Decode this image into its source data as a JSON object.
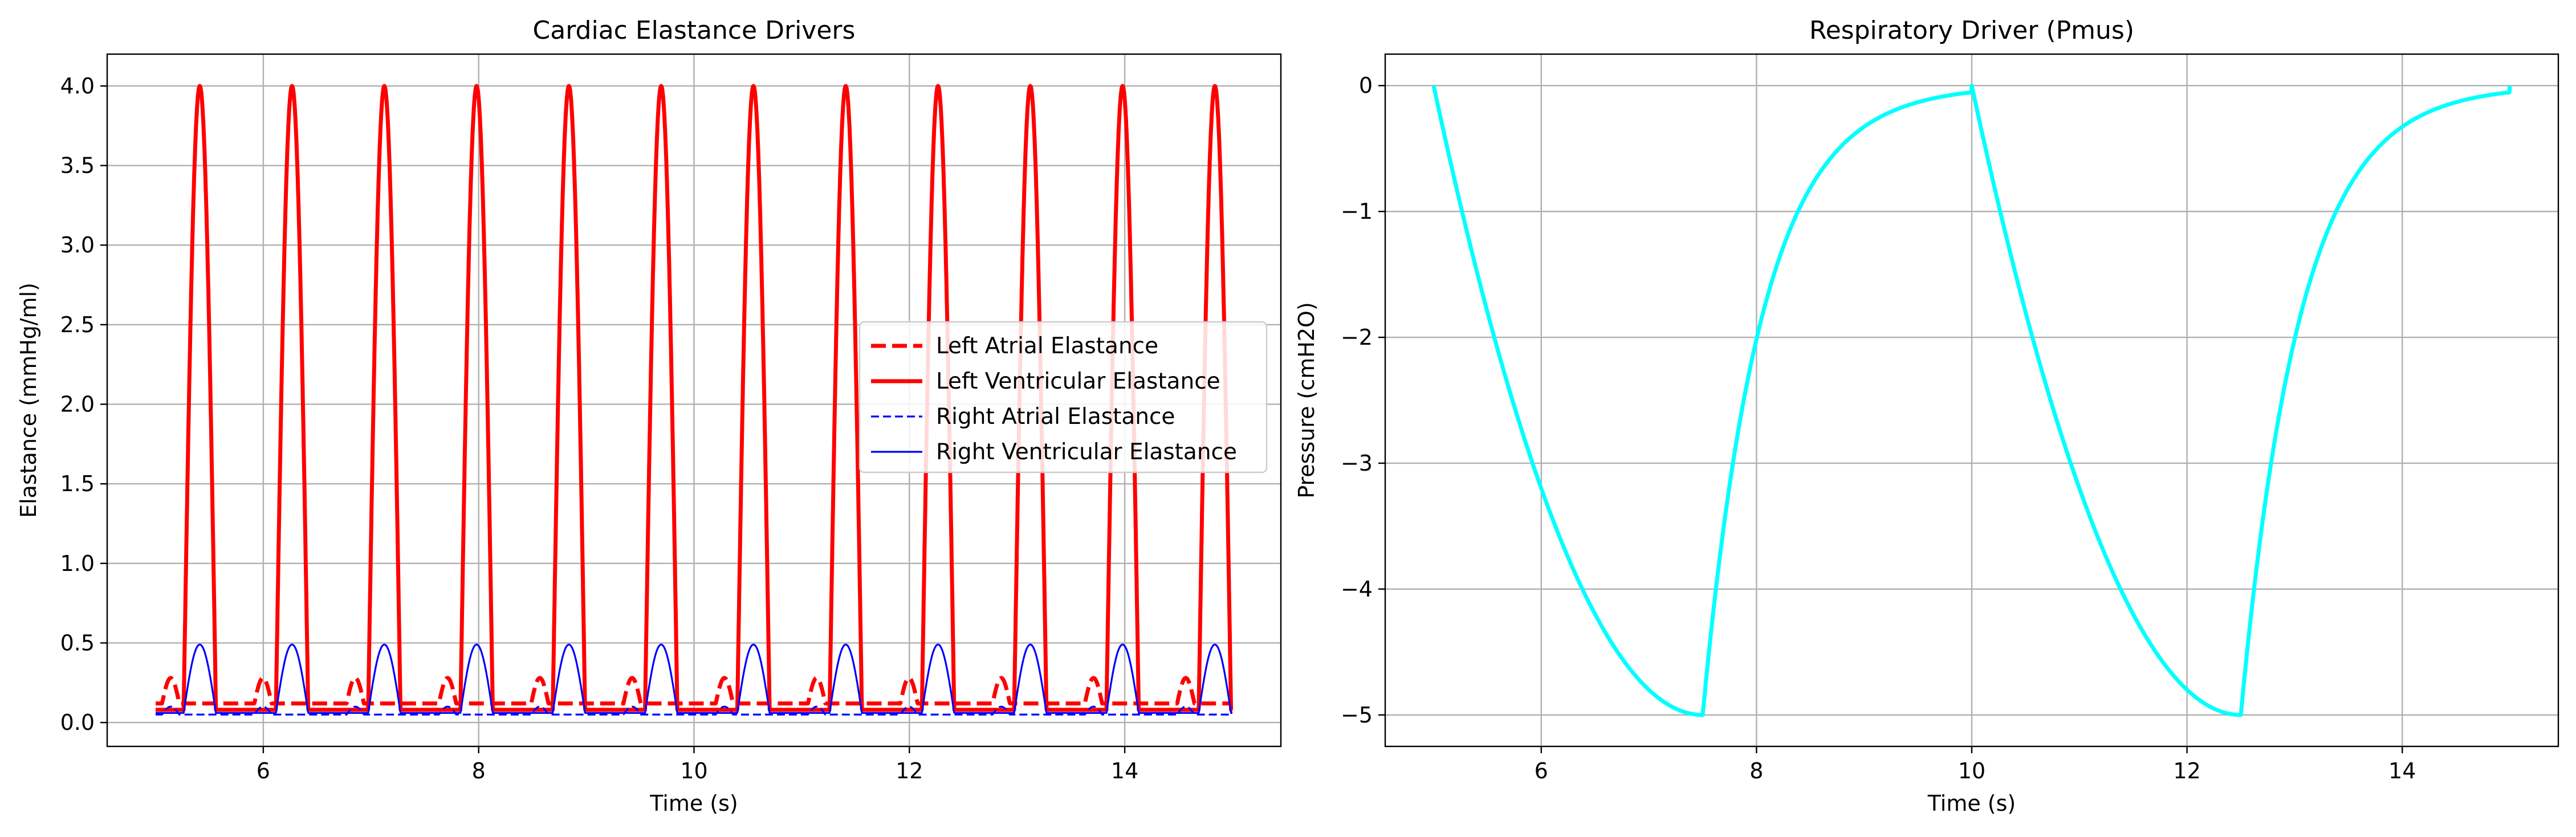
{
  "chart_data": [
    {
      "type": "line",
      "title": "Cardiac Elastance Drivers",
      "xlabel": "Time (s)",
      "ylabel": "Elastance (mmHg/ml)",
      "xlim": [
        4.55,
        15.45
      ],
      "ylim": [
        -0.15,
        4.2
      ],
      "xticks": [
        6,
        8,
        10,
        12,
        14
      ],
      "yticks": [
        0.0,
        0.5,
        1.0,
        1.5,
        2.0,
        2.5,
        3.0,
        3.5,
        4.0
      ],
      "grid": true,
      "legend": "center-right",
      "heart_period_s": 0.857,
      "series": [
        {
          "name": "Left Atrial Elastance",
          "color": "#ff0000",
          "style": "dashed",
          "width": "thick",
          "baseline": 0.12,
          "peak": 0.28,
          "curve": "atrial"
        },
        {
          "name": "Left Ventricular Elastance",
          "color": "#ff0000",
          "style": "solid",
          "width": "thick",
          "baseline": 0.08,
          "peak": 4.0,
          "curve": "ventricular"
        },
        {
          "name": "Right Atrial Elastance",
          "color": "#0000ff",
          "style": "dashed",
          "width": "thin",
          "baseline": 0.05,
          "peak": 0.1,
          "curve": "atrial"
        },
        {
          "name": "Right Ventricular Elastance",
          "color": "#0000ff",
          "style": "solid",
          "width": "thin",
          "baseline": 0.06,
          "peak": 0.49,
          "curve": "ventricular"
        }
      ]
    },
    {
      "type": "line",
      "title": "Respiratory Driver (Pmus)",
      "xlabel": "Time (s)",
      "ylabel": "Pressure (cmH2O)",
      "xlim": [
        4.55,
        15.45
      ],
      "ylim": [
        -5.25,
        0.25
      ],
      "xticks": [
        6,
        8,
        10,
        12,
        14
      ],
      "yticks": [
        0,
        -1,
        -2,
        -3,
        -4,
        -5
      ],
      "ytick_labels": [
        "0",
        "−1",
        "−2",
        "−3",
        "−4",
        "−5"
      ],
      "grid": true,
      "series": [
        {
          "color": "#00ffff",
          "style": "solid",
          "width": "thick",
          "breath_period_s": 5,
          "inspiration_s": 2.5,
          "min": -5,
          "max": 0
        }
      ]
    }
  ]
}
